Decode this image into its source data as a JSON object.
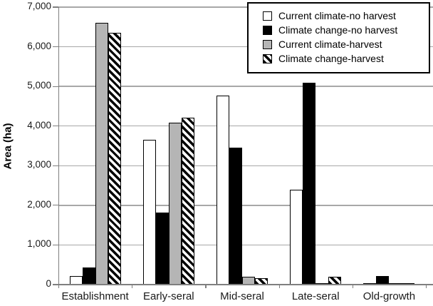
{
  "chart_data": {
    "type": "bar",
    "title": "",
    "xlabel": "",
    "ylabel": "Area (ha)",
    "ylim": [
      0,
      7000
    ],
    "ytick_interval": 1000,
    "ytick_labels": [
      "0",
      "1,000",
      "2,000",
      "3,000",
      "4,000",
      "5,000",
      "6,000",
      "7,000"
    ],
    "categories": [
      "Establishment",
      "Early-seral",
      "Mid-seral",
      "Late-seral",
      "Old-growth"
    ],
    "series": [
      {
        "name": "Current climate-no harvest",
        "fill": "white",
        "values": [
          220,
          3660,
          4760,
          2390,
          15
        ]
      },
      {
        "name": "Climate change-no harvest",
        "fill": "black",
        "values": [
          440,
          1810,
          3460,
          5090,
          210
        ]
      },
      {
        "name": "Current climate-harvest",
        "fill": "gray",
        "values": [
          6600,
          4090,
          190,
          40,
          10
        ]
      },
      {
        "name": "Climate change-harvest",
        "fill": "hatch",
        "values": [
          6360,
          4210,
          160,
          200,
          25
        ]
      }
    ],
    "legend_position": "top-right",
    "grid": true
  },
  "colors": {
    "gray_fill": "#b5b5b5",
    "black_fill": "#000000",
    "white_fill": "#ffffff",
    "hatch_pattern": "black-white-diagonal",
    "gridline": "#a8a8a8",
    "axis": "#7f7f7f",
    "background": "#ffffff"
  }
}
